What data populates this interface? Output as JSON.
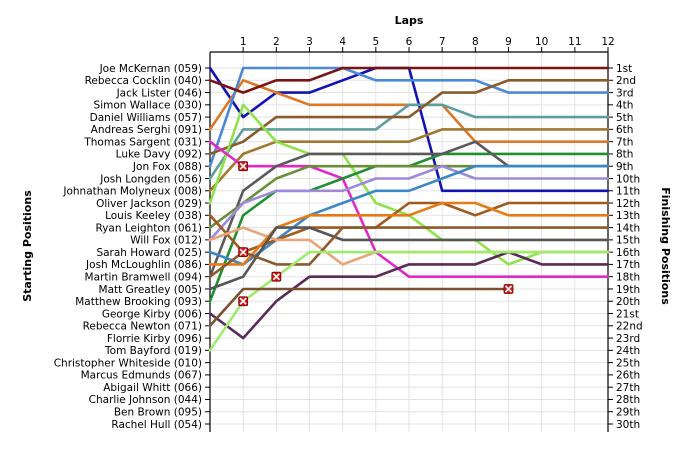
{
  "chart_data": {
    "type": "line",
    "xlabel": "Laps",
    "ylabel_left": "Starting Positions",
    "ylabel_right": "Finishing Positions",
    "x": [
      0,
      1,
      2,
      3,
      4,
      5,
      6,
      7,
      8,
      9,
      10,
      11,
      12
    ],
    "x_tick_labels": [
      "1",
      "2",
      "3",
      "4",
      "5",
      "6",
      "7",
      "8",
      "9",
      "10",
      "11",
      "12"
    ],
    "y_range": [
      1,
      30
    ],
    "grid": true,
    "starting_grid": [
      "Joe McKernan (059)",
      "Rebecca Cocklin (040)",
      "Jack Lister (046)",
      "Simon Wallace (030)",
      "Daniel Williams (057)",
      "Andreas Serghi (091)",
      "Thomas Sargent (031)",
      "Luke Davy (092)",
      "Jon Fox (088)",
      "Josh Longden (056)",
      "Johnathan Molyneux (008)",
      "Oliver Jackson (029)",
      "Louis Keeley (038)",
      "Ryan Leighton (061)",
      "Will Fox (012)",
      "Sarah Howard (025)",
      "Josh McLoughlin (086)",
      "Martin Bramwell (094)",
      "Matt Greatley (005)",
      "Matthew Brooking (093)",
      "George Kirby (006)",
      "Rebecca Newton (071)",
      "Florrie Kirby (096)",
      "Tom Bayford (019)",
      "Christopher Whiteside (010)",
      "Marcus Edmunds (067)",
      "Abigail Whitt (066)",
      "Charlie Johnson (044)",
      "Ben Brown (095)",
      "Rachel Hull (054)"
    ],
    "finishing_positions": [
      "1st",
      "2nd",
      "3rd",
      "4th",
      "5th",
      "6th",
      "7th",
      "8th",
      "9th",
      "10th",
      "11th",
      "12th",
      "13th",
      "14th",
      "15th",
      "16th",
      "17th",
      "18th",
      "19th",
      "20th",
      "21st",
      "22nd",
      "23rd",
      "24th",
      "25th",
      "26th",
      "27th",
      "28th",
      "29th",
      "30th"
    ],
    "series": [
      {
        "color": "#1414b4",
        "positions": [
          1,
          5,
          3,
          3,
          2,
          1,
          1,
          11,
          11,
          11,
          11,
          11,
          11
        ]
      },
      {
        "color": "#dc7828",
        "positions": [
          6,
          2,
          3,
          4,
          4,
          4,
          4,
          4,
          7,
          7,
          7,
          7,
          7
        ]
      },
      {
        "color": "#4a8ad4",
        "positions": [
          9,
          1,
          1,
          1,
          1,
          2,
          2,
          2,
          2,
          3,
          3,
          3,
          3
        ]
      },
      {
        "color": "#5f9e9e",
        "positions": [
          10,
          6,
          6,
          6,
          6,
          6,
          4,
          4,
          5,
          5,
          5,
          5,
          5
        ]
      },
      {
        "color": "#8b5a2b",
        "positions": [
          8,
          7,
          5,
          5,
          5,
          5,
          5,
          3,
          3,
          2,
          2,
          2,
          2
        ]
      },
      {
        "color": "#7a1414",
        "positions": [
          2,
          3,
          2,
          2,
          1,
          1,
          1,
          1,
          1,
          1,
          1,
          1,
          1
        ]
      },
      {
        "color": "#a07830",
        "positions": [
          11,
          8,
          7,
          7,
          7,
          7,
          7,
          6,
          6,
          6,
          6,
          6,
          6
        ]
      },
      {
        "color": "#8fe34a",
        "positions": [
          12,
          4,
          7,
          8,
          8,
          12,
          13,
          15,
          15,
          17,
          16,
          16,
          16
        ]
      },
      {
        "color": "#e129c7",
        "positions": [
          7,
          9,
          9,
          9,
          10,
          16,
          18,
          18,
          18,
          18,
          18,
          18,
          18
        ]
      },
      {
        "color": "#1f8f2f",
        "positions": [
          20,
          13,
          11,
          11,
          10,
          9,
          9,
          8,
          8,
          8,
          8,
          8,
          8
        ]
      },
      {
        "color": "#5a5a5a",
        "positions": [
          18,
          11,
          9,
          8,
          8,
          8,
          8,
          8,
          7,
          9,
          9,
          9,
          9
        ]
      },
      {
        "color": "#6b8e3a",
        "positions": [
          14,
          12,
          10,
          9,
          9,
          9,
          9,
          9,
          9,
          9,
          9,
          9,
          9
        ]
      },
      {
        "color": "#9d8ad8",
        "positions": [
          15,
          12,
          11,
          11,
          11,
          10,
          10,
          9,
          10,
          10,
          10,
          10,
          10
        ]
      },
      {
        "color": "#3c87c8",
        "positions": [
          16,
          17,
          15,
          13,
          12,
          11,
          11,
          10,
          9,
          9,
          9,
          9,
          9
        ]
      },
      {
        "color": "#a05a1e",
        "positions": [
          13,
          16,
          15,
          14,
          14,
          14,
          12,
          12,
          13,
          12,
          12,
          12,
          12
        ]
      },
      {
        "color": "#e9a57a",
        "positions": [
          15,
          14,
          15,
          15,
          17,
          16,
          16,
          16,
          16,
          16,
          16,
          16,
          16
        ]
      },
      {
        "color": "#e67a14",
        "positions": [
          17,
          17,
          14,
          13,
          13,
          13,
          13,
          12,
          12,
          13,
          13,
          13,
          13
        ]
      },
      {
        "color": "#555555",
        "positions": [
          19,
          18,
          14,
          14,
          15,
          15,
          15,
          15,
          15,
          15,
          15,
          15,
          15
        ]
      },
      {
        "color": "#8c5a2e",
        "positions": [
          18,
          16,
          17,
          17,
          14,
          14,
          14,
          14,
          14,
          14,
          14,
          14,
          14
        ]
      },
      {
        "color": "#5a2a5a",
        "positions": [
          21,
          23,
          20,
          18,
          18,
          18,
          17,
          17,
          17,
          16,
          17,
          17,
          17
        ]
      },
      {
        "color": "#a0eb6e",
        "positions": [
          24,
          20,
          18,
          16,
          16,
          16,
          16,
          16,
          16,
          16,
          16,
          16,
          16
        ]
      },
      {
        "color": "#7a5230",
        "positions": [
          22,
          19,
          19,
          19,
          19,
          19,
          19,
          19,
          19,
          19
        ]
      }
    ],
    "retirements": [
      {
        "lap": 1,
        "position": 9
      },
      {
        "lap": 1,
        "position": 16
      },
      {
        "lap": 2,
        "position": 18
      },
      {
        "lap": 1,
        "position": 20
      },
      {
        "lap": 9,
        "position": 19
      }
    ]
  }
}
